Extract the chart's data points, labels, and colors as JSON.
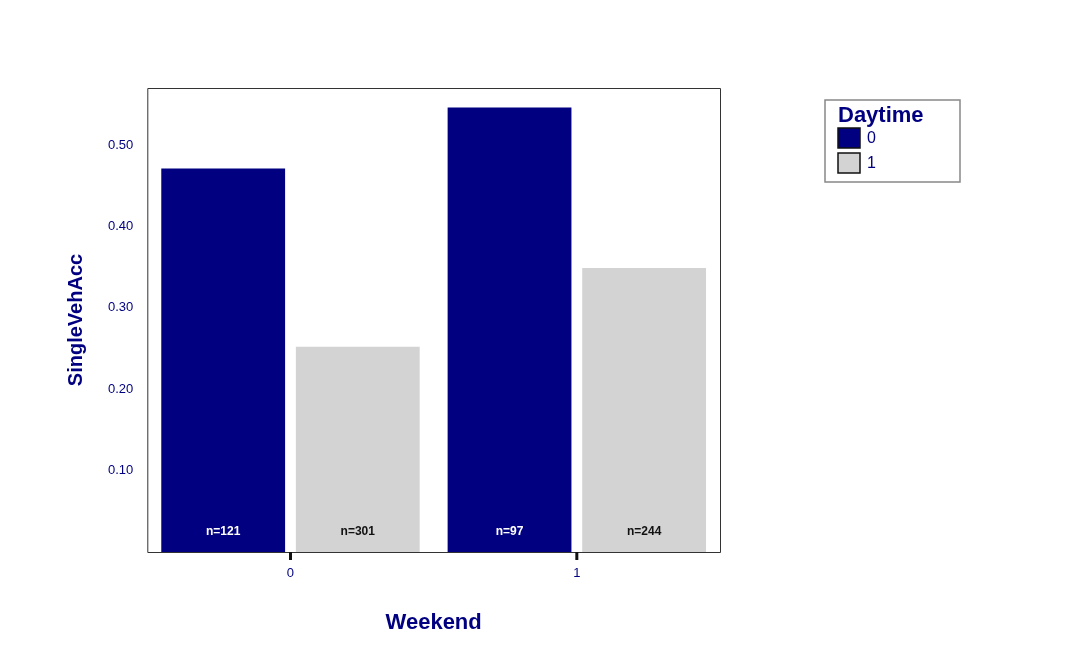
{
  "chart_data": {
    "type": "bar",
    "xlabel": "Weekend",
    "ylabel": "SingleVehAcc",
    "legend_title": "Daytime",
    "categories": [
      "0",
      "1"
    ],
    "series": [
      {
        "name": "0",
        "color": "#000080",
        "values": [
          0.471,
          0.546
        ]
      },
      {
        "name": "1",
        "color": "#d3d3d3",
        "values": [
          0.252,
          0.349
        ]
      }
    ],
    "ylim": [
      0,
      0.57
    ],
    "yticks": [
      {
        "value": 0.1,
        "label": "0.10"
      },
      {
        "value": 0.2,
        "label": "0.20"
      },
      {
        "value": 0.3,
        "label": "0.30"
      },
      {
        "value": 0.4,
        "label": "0.40"
      },
      {
        "value": 0.5,
        "label": "0.50"
      }
    ],
    "grid": false,
    "legend": "top right",
    "annotations": [
      "n=121",
      "n=301",
      "n=97",
      "n=244"
    ]
  }
}
